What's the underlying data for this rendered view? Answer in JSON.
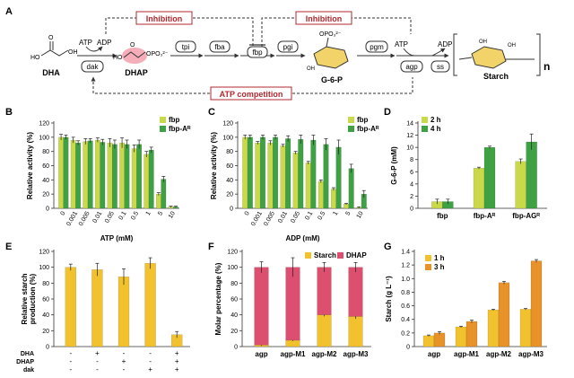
{
  "colors": {
    "lime": "#c9d94a",
    "green": "#3ea244",
    "yellow": "#f2c12e",
    "orange": "#e8922a",
    "pink": "#dd4f6e",
    "inhibition_red": "#b0282d",
    "arrow": "#333333"
  },
  "pathway": {
    "panel_label": "A",
    "inhibition_left": "Inhibition",
    "inhibition_right": "Inhibition",
    "atp_competition": "ATP competition",
    "atp1": "ATP",
    "adp1": "ADP",
    "dha_label": "DHA",
    "dak": "dak",
    "dhap_label": "DHAP",
    "tpi": "tpi",
    "fba": "fba",
    "fbp": "fbp",
    "pgi": "pgi",
    "g6p_label": "G-6-P",
    "pgm": "pgm",
    "atp2": "ATP",
    "adp2": "ADP",
    "agp": "agp",
    "ss": "ss",
    "starch_label": "Starch",
    "dha_formula": "HO    OH",
    "dhap_group": "OPO₃²⁻",
    "g6p_group": "OPO₃²⁻",
    "g6p_oh": "OH",
    "starch_oh": "OH",
    "starch_n": "n"
  },
  "chart_data": [
    {
      "panel": "B",
      "type": "bar",
      "xlabel": "ATP (mM)",
      "ylabel": "Relative activity (%)",
      "ylim": [
        0,
        120
      ],
      "yticks": [
        0,
        20,
        40,
        60,
        80,
        100,
        120
      ],
      "categories": [
        "0",
        "0.001",
        "0.005",
        "0.01",
        "0.05",
        "0.1",
        "0.5",
        "1",
        "5",
        "10"
      ],
      "series": [
        {
          "name": "fbp",
          "values": [
            100,
            96,
            94,
            96,
            92,
            92,
            84,
            76,
            20,
            2
          ],
          "errors": [
            4,
            4,
            4,
            3,
            6,
            7,
            5,
            4,
            2,
            1
          ]
        },
        {
          "name": "fbp-Aᴿ",
          "values": [
            100,
            92,
            95,
            93,
            90,
            90,
            90,
            82,
            41,
            2
          ],
          "errors": [
            3,
            3,
            3,
            4,
            6,
            6,
            6,
            4,
            4,
            1
          ]
        }
      ]
    },
    {
      "panel": "C",
      "type": "bar",
      "xlabel": "ADP (mM)",
      "ylabel": "Relative activity (%)",
      "ylim": [
        0,
        120
      ],
      "yticks": [
        0,
        20,
        40,
        60,
        80,
        100,
        120
      ],
      "categories": [
        "0",
        "0.001",
        "0.005",
        "0.01",
        "0.05",
        "0.1",
        "0.5",
        "1",
        "5",
        "10"
      ],
      "series": [
        {
          "name": "fbp",
          "values": [
            100,
            92,
            92,
            88,
            78,
            64,
            38,
            27,
            6,
            1
          ],
          "errors": [
            3,
            2,
            3,
            2,
            2,
            2,
            2,
            2,
            1,
            1
          ]
        },
        {
          "name": "fbp-Aᴿ",
          "values": [
            100,
            100,
            100,
            98,
            97,
            96,
            90,
            86,
            56,
            20
          ],
          "errors": [
            3,
            3,
            3,
            4,
            6,
            7,
            8,
            10,
            6,
            5
          ]
        }
      ]
    },
    {
      "panel": "D",
      "type": "bar",
      "xlabel": "",
      "ylabel": "G-6-P (mM)",
      "ylim": [
        0,
        14
      ],
      "yticks": [
        0,
        2,
        4,
        6,
        8,
        10,
        12,
        14
      ],
      "categories": [
        "fbp",
        "fbp-Aᴿ",
        "fbp-AGᴿ"
      ],
      "series": [
        {
          "name": "2 h",
          "values": [
            1.1,
            6.6,
            7.7
          ],
          "errors": [
            0.4,
            0.15,
            0.4
          ]
        },
        {
          "name": "4 h",
          "values": [
            1.1,
            10.0,
            10.9
          ],
          "errors": [
            0.4,
            0.2,
            1.3
          ]
        }
      ]
    },
    {
      "panel": "E",
      "type": "bar",
      "xlabel": "",
      "ylabel": "Relative starch production (%)",
      "ylim": [
        0,
        120
      ],
      "yticks": [
        0,
        20,
        40,
        60,
        80,
        100,
        120
      ],
      "rows": [
        {
          "label": "DHA",
          "marks": [
            "-",
            "+",
            "-",
            "-",
            "+"
          ]
        },
        {
          "label": "DHAP",
          "marks": [
            "-",
            "-",
            "+",
            "-",
            "+"
          ]
        },
        {
          "label": "dak",
          "marks": [
            "-",
            "-",
            "-",
            "+",
            "+"
          ]
        }
      ],
      "series": [
        {
          "name": "starch",
          "values": [
            100,
            97,
            88,
            105,
            15
          ],
          "errors": [
            4,
            8,
            10,
            7,
            4
          ]
        }
      ]
    },
    {
      "panel": "F",
      "type": "bar",
      "stacked": true,
      "xlabel": "",
      "ylabel": "Molar percentage (%)",
      "ylim": [
        0,
        120
      ],
      "yticks": [
        0,
        20,
        40,
        60,
        80,
        100,
        120
      ],
      "categories": [
        "agp",
        "agp-M1",
        "agp-M2",
        "agp-M3"
      ],
      "series": [
        {
          "name": "Starch",
          "values": [
            2,
            8,
            40,
            38
          ],
          "errors": [
            1,
            1,
            2,
            3
          ]
        },
        {
          "name": "DHAP",
          "values": [
            98,
            92,
            60,
            62
          ],
          "errors": [
            7,
            12,
            6,
            6
          ]
        }
      ]
    },
    {
      "panel": "G",
      "type": "bar",
      "xlabel": "",
      "ylabel": "Starch (g L⁻¹)",
      "ylim": [
        0,
        1.4
      ],
      "yticks": [
        0,
        0.2,
        0.4,
        0.6,
        0.8,
        1.0,
        1.2,
        1.4
      ],
      "categories": [
        "agp",
        "agp-M1",
        "agp-M2",
        "agp-M3"
      ],
      "series": [
        {
          "name": "1 h",
          "values": [
            0.16,
            0.29,
            0.54,
            0.55
          ],
          "errors": [
            0.01,
            0.01,
            0.01,
            0.01
          ]
        },
        {
          "name": "3 h",
          "values": [
            0.2,
            0.37,
            0.94,
            1.26
          ],
          "errors": [
            0.02,
            0.02,
            0.02,
            0.02
          ]
        }
      ]
    }
  ]
}
